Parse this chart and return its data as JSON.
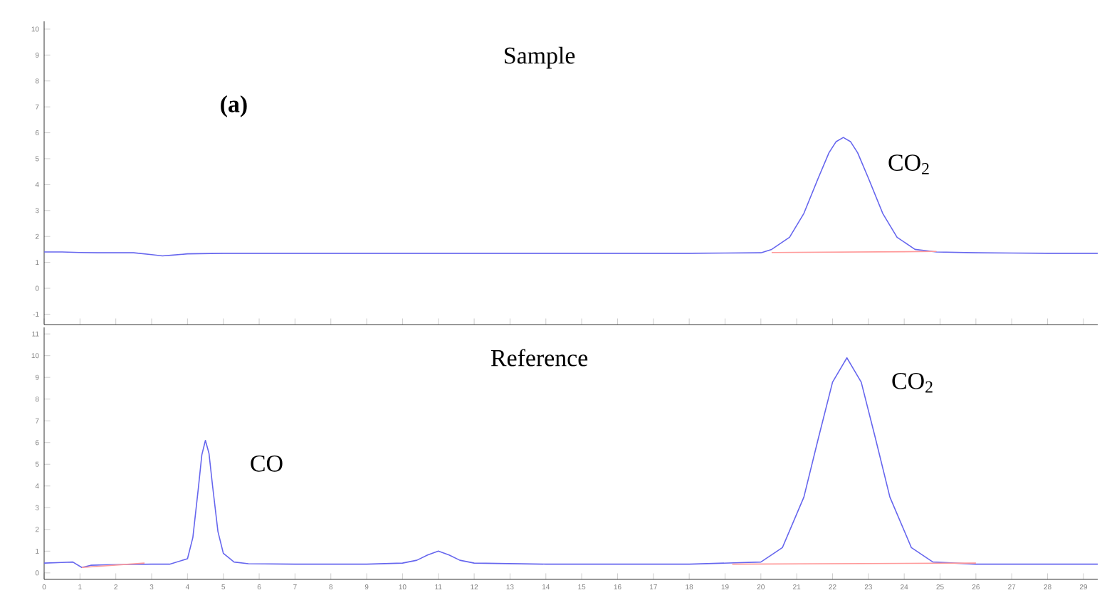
{
  "chart_data": [
    {
      "type": "line",
      "title": "Sample",
      "tick_labels": "y",
      "xlim": [
        0,
        29.4
      ],
      "ylim": [
        -1.4,
        10.3
      ],
      "xticks": [
        0,
        1,
        2,
        3,
        4,
        5,
        6,
        7,
        8,
        9,
        10,
        11,
        12,
        13,
        14,
        15,
        16,
        17,
        18,
        19,
        20,
        21,
        22,
        23,
        24,
        25,
        26,
        27,
        28,
        29
      ],
      "yticks": [
        -1,
        0,
        1,
        2,
        3,
        4,
        5,
        6,
        7,
        8,
        9,
        10
      ],
      "series": [
        {
          "color": "#6666ee",
          "x": [
            0,
            0.5,
            1,
            1.5,
            2,
            2.5,
            3,
            3.3,
            3.6,
            4,
            5,
            6,
            8,
            10,
            12,
            14,
            16,
            18,
            19,
            20,
            20.3,
            20.8,
            21.2,
            21.6,
            21.9,
            22.1,
            22.3,
            22.5,
            22.7,
            23.0,
            23.4,
            23.8,
            24.3,
            24.9,
            26,
            27,
            28,
            29.4
          ],
          "values": [
            1.4,
            1.4,
            1.38,
            1.37,
            1.37,
            1.37,
            1.3,
            1.25,
            1.28,
            1.33,
            1.35,
            1.35,
            1.35,
            1.35,
            1.35,
            1.35,
            1.35,
            1.35,
            1.36,
            1.37,
            1.5,
            1.97,
            2.89,
            4.25,
            5.23,
            5.66,
            5.82,
            5.66,
            5.23,
            4.25,
            2.89,
            1.97,
            1.5,
            1.4,
            1.37,
            1.36,
            1.35,
            1.35
          ]
        },
        {
          "color": "#ff9999",
          "x": [
            20.3,
            24.9
          ],
          "values": [
            1.38,
            1.42
          ]
        }
      ],
      "annotations": [
        "(a)",
        {
          "text": "CO$_{2}$",
          "x": 22.3,
          "y": 5.82
        }
      ]
    },
    {
      "type": "line",
      "title": "Reference",
      "xlim": [
        0,
        29.4
      ],
      "ylim": [
        -0.3,
        11.3
      ],
      "xticks": [
        0,
        1,
        2,
        3,
        4,
        5,
        6,
        7,
        8,
        9,
        10,
        11,
        12,
        13,
        14,
        15,
        16,
        17,
        18,
        19,
        20,
        21,
        22,
        23,
        24,
        25,
        26,
        27,
        28,
        29
      ],
      "yticks": [
        0,
        1,
        2,
        3,
        4,
        5,
        6,
        7,
        8,
        9,
        10,
        11
      ],
      "series": [
        {
          "color": "#6666ee",
          "x": [
            0,
            0.5,
            0.8,
            1.05,
            1.3,
            2,
            3,
            3.5,
            4.0,
            4.15,
            4.3,
            4.4,
            4.5,
            4.6,
            4.7,
            4.85,
            5.0,
            5.3,
            5.7,
            7,
            9,
            10.0,
            10.4,
            10.7,
            11.0,
            11.3,
            11.6,
            12.0,
            14,
            16,
            18,
            20.0,
            20.6,
            21.2,
            21.6,
            22.0,
            22.4,
            22.8,
            23.2,
            23.6,
            24.2,
            24.8,
            26,
            28,
            29.4
          ],
          "values": [
            0.45,
            0.48,
            0.5,
            0.25,
            0.35,
            0.38,
            0.4,
            0.4,
            0.65,
            1.63,
            3.86,
            5.43,
            6.1,
            5.5,
            4.0,
            1.9,
            0.9,
            0.5,
            0.42,
            0.4,
            0.4,
            0.45,
            0.58,
            0.82,
            1.0,
            0.82,
            0.58,
            0.45,
            0.4,
            0.4,
            0.4,
            0.5,
            1.16,
            3.49,
            6.17,
            8.78,
            9.9,
            8.78,
            6.17,
            3.49,
            1.16,
            0.5,
            0.4,
            0.4,
            0.4
          ]
        },
        {
          "color": "#ff9999",
          "x": [
            1.05,
            2.8
          ],
          "values": [
            0.25,
            0.45
          ]
        },
        {
          "color": "#ff9999",
          "x": [
            19.2,
            26.0
          ],
          "values": [
            0.4,
            0.45
          ]
        }
      ],
      "annotations": [
        {
          "text": "CO",
          "x": 4.5,
          "y": 6.1
        },
        {
          "text": "CO$_{2}$",
          "x": 22.4,
          "y": 9.9
        }
      ]
    }
  ]
}
